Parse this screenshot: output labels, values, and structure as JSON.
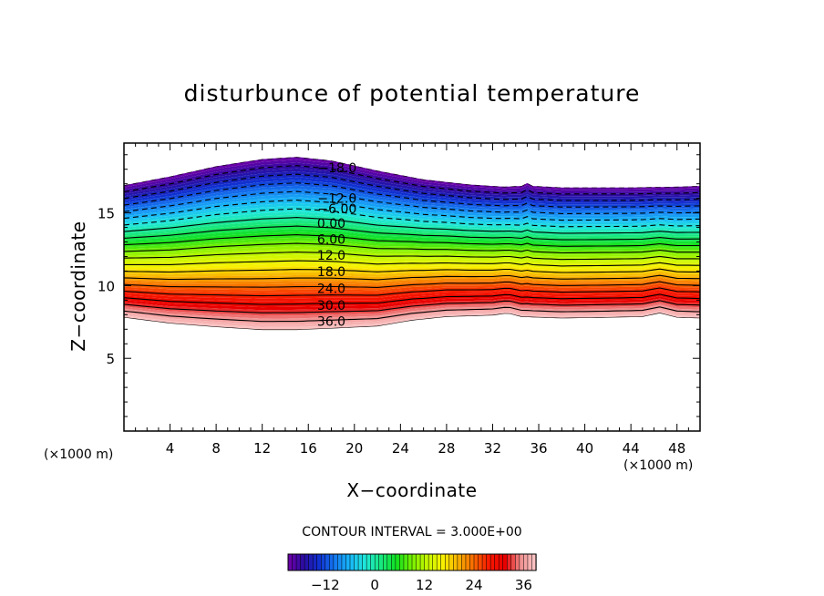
{
  "chart_data": {
    "type": "contour",
    "title": "disturbunce of potential temperature",
    "xlabel": "X−coordinate",
    "ylabel": "Z−coordinate",
    "x_unit_left": "(×1000 m)",
    "x_unit_right": "(×1000 m)",
    "xlim": [
      0,
      50
    ],
    "ylim": [
      0,
      19.8
    ],
    "x_ticks": [
      4,
      8,
      12,
      16,
      20,
      24,
      28,
      32,
      36,
      40,
      44,
      48
    ],
    "x_tick_labels": [
      "4",
      "8",
      "12",
      "16",
      "20",
      "24",
      "28",
      "32",
      "36",
      "40",
      "44",
      "48"
    ],
    "y_ticks": [
      5,
      10,
      15
    ],
    "y_tick_labels": [
      "5",
      "10",
      "15"
    ],
    "contour_interval_text": "CONTOUR INTERVAL = 3.000E+00",
    "contour_interval": 3.0,
    "value_range": [
      -21,
      39
    ],
    "top_boundary": [
      [
        0,
        16.9
      ],
      [
        4,
        17.5
      ],
      [
        8,
        18.2
      ],
      [
        12,
        18.7
      ],
      [
        15,
        18.85
      ],
      [
        18,
        18.6
      ],
      [
        22,
        17.9
      ],
      [
        26,
        17.3
      ],
      [
        30,
        16.95
      ],
      [
        33,
        16.8
      ],
      [
        34.5,
        16.85
      ],
      [
        35,
        17.05
      ],
      [
        35.5,
        16.85
      ],
      [
        38,
        16.75
      ],
      [
        44,
        16.75
      ],
      [
        48,
        16.8
      ],
      [
        50,
        16.85
      ]
    ],
    "bottom_boundary": [
      [
        0,
        7.8
      ],
      [
        4,
        7.4
      ],
      [
        8,
        7.15
      ],
      [
        12,
        6.95
      ],
      [
        15,
        6.95
      ],
      [
        18,
        7.05
      ],
      [
        22,
        7.2
      ],
      [
        25,
        7.6
      ],
      [
        28,
        7.85
      ],
      [
        32,
        7.95
      ],
      [
        33.3,
        8.1
      ],
      [
        34.5,
        7.85
      ],
      [
        38,
        7.75
      ],
      [
        42,
        7.8
      ],
      [
        45,
        7.85
      ],
      [
        46.5,
        8.1
      ],
      [
        48,
        7.8
      ],
      [
        50,
        7.75
      ]
    ],
    "contour_labels": [
      {
        "value": -18.0,
        "text": "−18.0",
        "x": 18.5,
        "z": 18.1
      },
      {
        "value": -12.0,
        "text": "−12.0",
        "x": 18.5,
        "z": 16.0
      },
      {
        "value": -6.0,
        "text": "−6.00",
        "x": 18.5,
        "z": 15.3
      },
      {
        "value": 0.0,
        "text": "0.00",
        "x": 18,
        "z": 14.3
      },
      {
        "value": 6.0,
        "text": "6.00",
        "x": 18,
        "z": 13.2
      },
      {
        "value": 12.0,
        "text": "12.0",
        "x": 18,
        "z": 12.1
      },
      {
        "value": 18.0,
        "text": "18.0",
        "x": 18,
        "z": 10.95
      },
      {
        "value": 24.0,
        "text": "24.0",
        "x": 18,
        "z": 9.8
      },
      {
        "value": 30.0,
        "text": "30.0",
        "x": 18,
        "z": 8.65
      },
      {
        "value": 36.0,
        "text": "36.0",
        "x": 18,
        "z": 7.55
      }
    ],
    "colorbar": {
      "ticks": [
        -12,
        0,
        12,
        24,
        36
      ],
      "tick_labels": [
        "−12",
        "0",
        "12",
        "24",
        "36"
      ],
      "colors": [
        "#7000a8",
        "#2a0ca0",
        "#1030d0",
        "#1478f0",
        "#18b8f8",
        "#20e8d8",
        "#18e880",
        "#10e020",
        "#78f000",
        "#c8f800",
        "#f8f000",
        "#f8b000",
        "#f86800",
        "#f81800",
        "#e80000",
        "#f09090",
        "#fcc8c8"
      ]
    }
  }
}
